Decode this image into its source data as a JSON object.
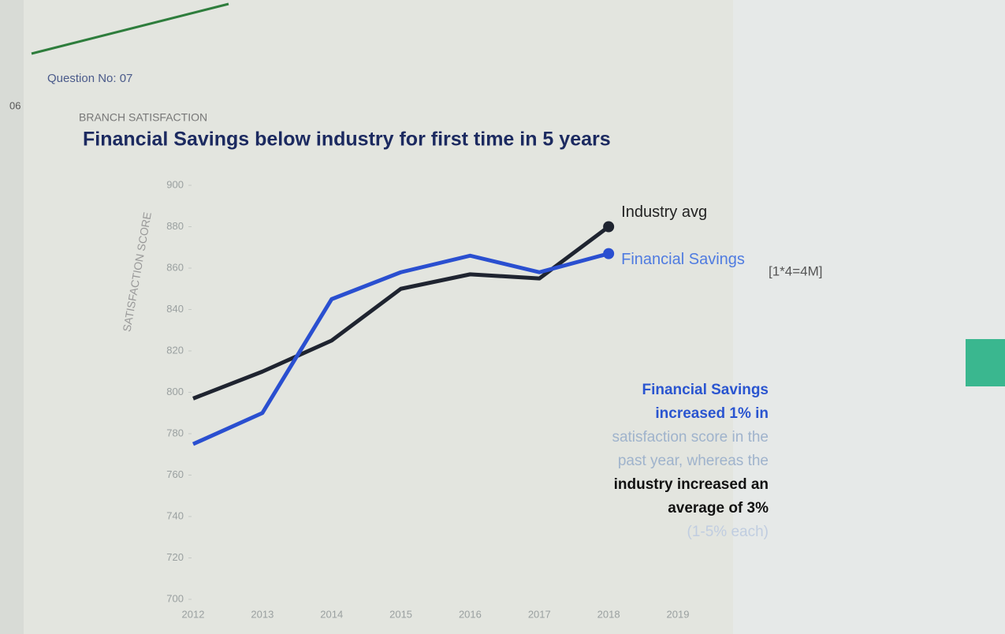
{
  "side_label": "06",
  "question": "Question No: 07",
  "marks": "[1*4=4M]",
  "chart_data": {
    "type": "line",
    "subtitle": "BRANCH SATISFACTION",
    "title": "Financial Savings below industry for first time in 5 years",
    "y_label": "SATISFACTION SCORE",
    "categories": [
      "2012",
      "2013",
      "2014",
      "2015",
      "2016",
      "2017",
      "2018",
      "2019"
    ],
    "series": [
      {
        "name": "Industry avg",
        "color": "#1f2430",
        "values": [
          797,
          810,
          825,
          850,
          857,
          855,
          880,
          null
        ]
      },
      {
        "name": "Financial Savings",
        "color": "#2a4fd0",
        "values": [
          775,
          790,
          845,
          858,
          866,
          858,
          867,
          null
        ]
      }
    ],
    "ylim": [
      700,
      900
    ],
    "yticks": [
      700,
      720,
      740,
      760,
      780,
      800,
      820,
      840,
      860,
      880,
      900
    ],
    "grid": false,
    "annotation": [
      "Financial Savings",
      "increased 1% in",
      "satisfaction score in the",
      "past year, whereas the",
      "industry increased an",
      "average of 3%",
      "(1-5% each)"
    ]
  }
}
